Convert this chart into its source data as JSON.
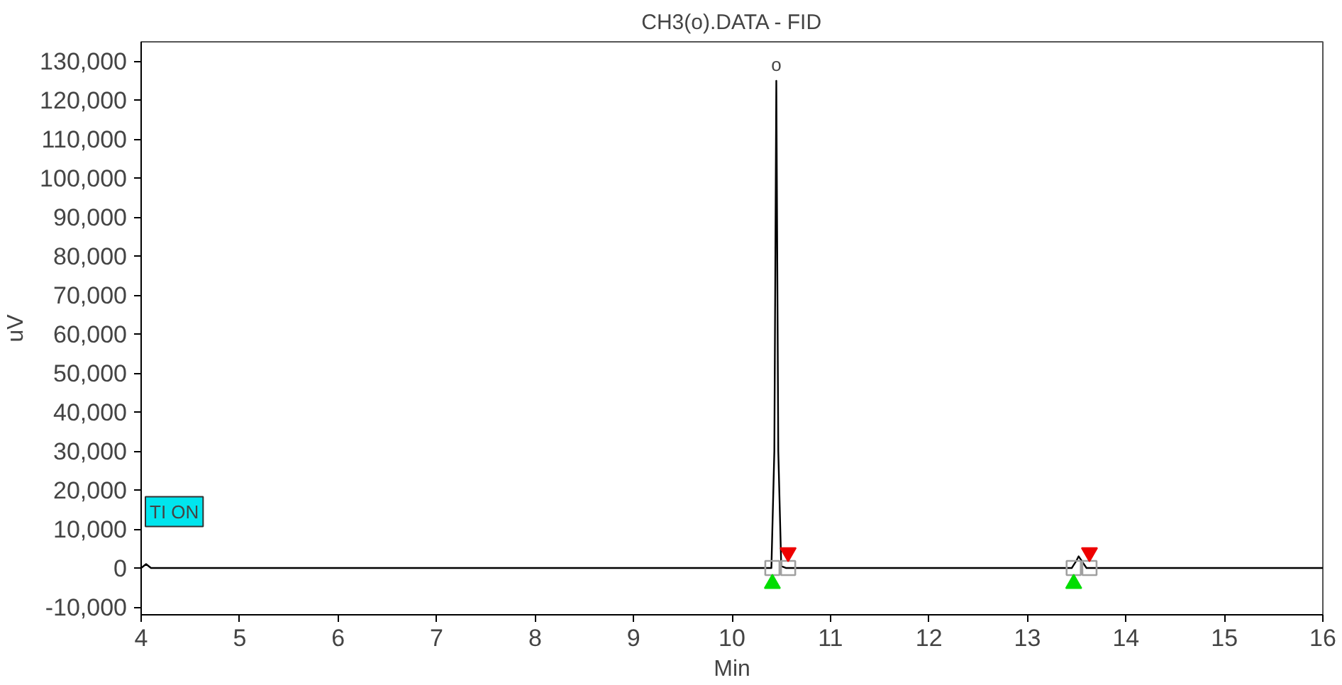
{
  "chart_data": {
    "type": "line",
    "title": "CH3(o).DATA - FID",
    "xlabel": "Min",
    "ylabel": "uV",
    "xlim": [
      4,
      16
    ],
    "xticks": [
      4,
      5,
      6,
      7,
      8,
      9,
      10,
      11,
      12,
      13,
      14,
      15,
      16
    ],
    "ylim": [
      -12000,
      135000
    ],
    "yticks": [
      {
        "value": -10000,
        "label": "-10,000"
      },
      {
        "value": 0,
        "label": "0"
      },
      {
        "value": 10000,
        "label": "10,000"
      },
      {
        "value": 20000,
        "label": "20,000"
      },
      {
        "value": 30000,
        "label": "30,000"
      },
      {
        "value": 40000,
        "label": "40,000"
      },
      {
        "value": 50000,
        "label": "50,000"
      },
      {
        "value": 60000,
        "label": "60,000"
      },
      {
        "value": 70000,
        "label": "70,000"
      },
      {
        "value": 80000,
        "label": "80,000"
      },
      {
        "value": 90000,
        "label": "90,000"
      },
      {
        "value": 100000,
        "label": "100,000"
      },
      {
        "value": 110000,
        "label": "110,000"
      },
      {
        "value": 120000,
        "label": "120,000"
      },
      {
        "value": 130000,
        "label": "130,000"
      }
    ],
    "grid": false,
    "marker": "none",
    "line_style": "solid",
    "series": [
      {
        "color": "#000000",
        "x": [
          4.0,
          4.05,
          4.1,
          4.6,
          5.5,
          10.4,
          10.43,
          10.45,
          10.47,
          10.5,
          10.55,
          13.45,
          13.5,
          13.52,
          13.56,
          13.6,
          16.0
        ],
        "values": [
          0,
          1000,
          0,
          0,
          0,
          0,
          30000,
          125000,
          30000,
          500,
          0,
          0,
          2000,
          3000,
          1500,
          0,
          0
        ]
      },
      {
        "type": "scatter",
        "marker": "square",
        "color": "#a0a0a0",
        "x": [
          10.41,
          10.57,
          13.47,
          13.63
        ],
        "values": [
          0,
          0,
          0,
          0
        ]
      },
      {
        "type": "scatter",
        "marker": "triangle",
        "color": "#00dd00",
        "x": [
          10.41,
          13.47
        ],
        "values": [
          -4000,
          -4000
        ]
      },
      {
        "type": "scatter",
        "marker": "triangle",
        "color": "#ee0000",
        "x": [
          10.57,
          13.63
        ],
        "values": [
          4000,
          4000
        ]
      }
    ],
    "annotations": [
      {
        "text": "o",
        "x": 10.45,
        "y": 125000
      },
      "TI ON"
    ]
  }
}
